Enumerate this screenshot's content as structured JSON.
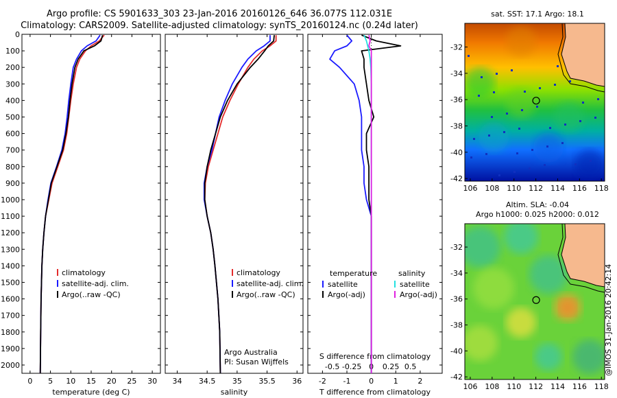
{
  "header": {
    "line1": "Argo profile: CS 5901633_303 23-Jan-2016 20160126_646 36.077S 112.031E",
    "line2": "Climatology: CARS2009. Satellite-adjusted climatology: synTS_20160124.nc (0.24d later)"
  },
  "stamp": "@IMOS 31-Jan-2016 20:42:14",
  "colors": {
    "climatology": "#e32b2b",
    "satellite": "#1a1aff",
    "argo": "#000000",
    "sal_satellite": "#22e0e0",
    "sal_argo": "#e020e0"
  },
  "chart_data": [
    {
      "type": "line",
      "id": "temperature",
      "xlabel": "temperature (deg C)",
      "ylabel": "",
      "xlim": [
        -2,
        32
      ],
      "ylim": [
        2050,
        0
      ],
      "xticks": [
        "0",
        "5",
        "10",
        "15",
        "20",
        "25",
        "30"
      ],
      "yticks": [
        "0",
        "100",
        "200",
        "300",
        "400",
        "500",
        "600",
        "700",
        "800",
        "900",
        "1000",
        "1100",
        "1200",
        "1300",
        "1400",
        "1500",
        "1600",
        "1700",
        "1800",
        "1900",
        "2000"
      ],
      "depth": [
        5,
        40,
        70,
        100,
        150,
        200,
        300,
        400,
        500,
        600,
        700,
        800,
        900,
        1000,
        1100,
        1200,
        1300,
        1400,
        1600,
        1800,
        2050
      ],
      "series": [
        {
          "name": "climatology",
          "values": [
            18.2,
            17.0,
            15.0,
            13.6,
            12.2,
            11.4,
            10.6,
            10.0,
            9.5,
            9.0,
            8.2,
            6.8,
            5.4,
            4.6,
            3.8,
            3.4,
            3.1,
            2.9,
            2.7,
            2.6,
            2.5
          ]
        },
        {
          "name": "satellite-adj. clim.",
          "values": [
            17.2,
            16.2,
            14.0,
            12.6,
            11.4,
            10.6,
            10.0,
            9.5,
            9.1,
            8.6,
            7.8,
            6.5,
            5.1,
            4.4,
            3.8,
            3.4,
            3.1,
            2.9,
            2.7,
            2.6,
            2.5
          ]
        },
        {
          "name": "Argo(..raw -QC)",
          "values": [
            17.8,
            17.4,
            15.8,
            13.2,
            11.8,
            11.0,
            10.3,
            9.8,
            9.4,
            8.8,
            8.0,
            6.6,
            5.2,
            4.5,
            3.8,
            3.4,
            3.1,
            2.9,
            2.7,
            2.6,
            2.5
          ]
        }
      ],
      "legend": [
        "climatology",
        "satellite-adj. clim.",
        "Argo(..raw -QC)"
      ]
    },
    {
      "type": "line",
      "id": "salinity",
      "xlabel": "salinity",
      "xlim": [
        33.8,
        36.1
      ],
      "ylim": [
        2050,
        0
      ],
      "xticks": [
        "34",
        "34.5",
        "35",
        "35.5",
        "36"
      ],
      "depth": [
        5,
        40,
        70,
        100,
        150,
        200,
        300,
        400,
        500,
        600,
        700,
        800,
        900,
        1000,
        1100,
        1200,
        1300,
        1400,
        1600,
        1800,
        2050
      ],
      "series": [
        {
          "name": "climatology",
          "values": [
            35.65,
            35.65,
            35.55,
            35.42,
            35.28,
            35.18,
            35.02,
            34.88,
            34.76,
            34.68,
            34.6,
            34.52,
            34.47,
            34.46,
            34.5,
            34.56,
            34.6,
            34.63,
            34.68,
            34.71,
            34.72
          ]
        },
        {
          "name": "satellite-adj. clim.",
          "values": [
            35.55,
            35.55,
            35.45,
            35.32,
            35.18,
            35.08,
            34.92,
            34.8,
            34.7,
            34.64,
            34.58,
            34.5,
            34.45,
            34.45,
            34.5,
            34.56,
            34.6,
            34.63,
            34.68,
            34.71,
            34.72
          ]
        },
        {
          "name": "Argo(..raw -QC)",
          "values": [
            35.62,
            35.61,
            35.52,
            35.46,
            35.35,
            35.22,
            35.0,
            34.84,
            34.72,
            34.64,
            34.56,
            34.5,
            34.46,
            34.46,
            34.5,
            34.56,
            34.6,
            34.63,
            34.68,
            34.71,
            34.72
          ]
        }
      ],
      "legend": [
        "climatology",
        "satellite-adj. clim.",
        "Argo(..raw -QC)"
      ],
      "annotation": [
        "Argo Australia",
        "PI: Susan Wijffels"
      ]
    },
    {
      "type": "line",
      "id": "difference",
      "xlabel": "T difference from climatology",
      "xlabel_top": "S difference from climatology",
      "xlim": [
        -2.6,
        2.9
      ],
      "ylim": [
        2050,
        0
      ],
      "xticks": [
        "-2",
        "-1",
        "0",
        "1",
        "2"
      ],
      "xticks_top": [
        "-0.5",
        "-0.25",
        "0",
        "0.25",
        "0.5"
      ],
      "depth": [
        5,
        40,
        70,
        100,
        150,
        200,
        300,
        400,
        500,
        600,
        700,
        800,
        900,
        1000,
        1100,
        1200,
        1400,
        1600,
        1800,
        2050
      ],
      "series": [
        {
          "name": "temperature satellite",
          "values": [
            -1.0,
            -0.8,
            -1.0,
            -1.5,
            -1.7,
            -1.3,
            -0.7,
            -0.5,
            -0.4,
            -0.4,
            -0.4,
            -0.3,
            -0.3,
            -0.2,
            0.0,
            0.0,
            0.0,
            0.0,
            0.0,
            0.0
          ]
        },
        {
          "name": "temperature Argo(-adj)",
          "values": [
            -0.4,
            0.2,
            1.2,
            -0.4,
            -0.3,
            -0.3,
            -0.2,
            -0.1,
            0.1,
            -0.2,
            -0.2,
            -0.1,
            -0.1,
            -0.1,
            0.0,
            0.0,
            0.0,
            0.0,
            0.0,
            0.0
          ]
        },
        {
          "name": "salinity satellite",
          "values": [
            -0.3,
            -0.2,
            -0.15,
            -0.1,
            -0.05,
            -0.02,
            0.0,
            0.0,
            0.0,
            0.0,
            0.0,
            0.0,
            0.0,
            0.0,
            0.0,
            0.0,
            0.0,
            0.0,
            0.0,
            0.0
          ]
        },
        {
          "name": "salinity Argo(-adj)",
          "values": [
            -0.1,
            -0.05,
            -0.1,
            0.0,
            0.0,
            0.0,
            0.0,
            0.0,
            0.0,
            0.0,
            0.0,
            0.0,
            0.0,
            0.0,
            0.0,
            0.0,
            0.0,
            0.0,
            0.0,
            0.0
          ]
        }
      ],
      "legend_headers": [
        "temperature",
        "salinity"
      ],
      "legend": [
        "satellite",
        "Argo(-adj)",
        "satellite",
        "Argo(-adj)"
      ]
    },
    {
      "type": "heatmap",
      "id": "sst-map",
      "title": "sat. SST: 17.1  Argo: 18.1",
      "xlim": [
        105.5,
        118.3
      ],
      "ylim": [
        -42.2,
        -30.2
      ],
      "xticks": [
        "106",
        "108",
        "110",
        "112",
        "114",
        "116",
        "118"
      ],
      "yticks": [
        "-32",
        "-34",
        "-36",
        "-38",
        "-40",
        "-42"
      ],
      "marker": {
        "lon": 112.03,
        "lat": -36.08
      }
    },
    {
      "type": "heatmap",
      "id": "sla-map",
      "title_lines": [
        "Altim. SLA: -0.04",
        "Argo h1000: 0.025 h2000: 0.012"
      ],
      "xlim": [
        105.5,
        118.3
      ],
      "ylim": [
        -42.2,
        -30.2
      ],
      "xticks": [
        "106",
        "108",
        "110",
        "112",
        "114",
        "116",
        "118"
      ],
      "yticks": [
        "-32",
        "-34",
        "-36",
        "-38",
        "-40",
        "-42"
      ],
      "marker": {
        "lon": 112.03,
        "lat": -36.08
      }
    }
  ]
}
